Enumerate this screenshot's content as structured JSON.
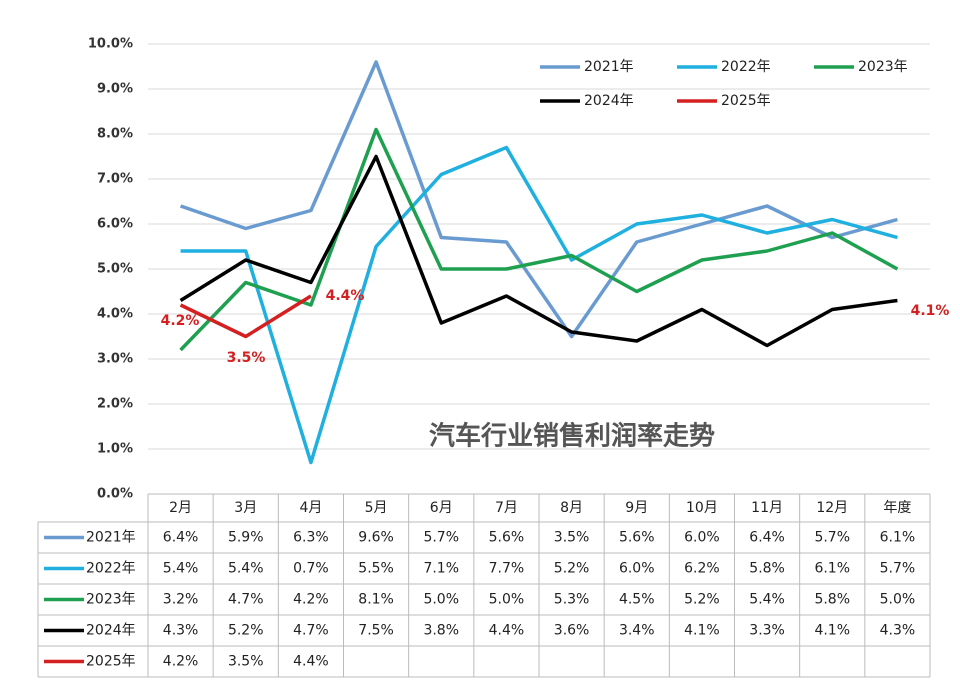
{
  "chart_data": {
    "type": "line",
    "title": "汽车行业销售利润率走势",
    "categories": [
      "2月",
      "3月",
      "4月",
      "5月",
      "6月",
      "7月",
      "8月",
      "9月",
      "10月",
      "11月",
      "12月",
      "年度"
    ],
    "ylim": [
      0,
      10
    ],
    "yticks": [
      {
        "value": 0,
        "label": "0.0%"
      },
      {
        "value": 1,
        "label": "1.0%"
      },
      {
        "value": 2,
        "label": "2.0%"
      },
      {
        "value": 3,
        "label": "3.0%"
      },
      {
        "value": 4,
        "label": "4.0%"
      },
      {
        "value": 5,
        "label": "5.0%"
      },
      {
        "value": 6,
        "label": "6.0%"
      },
      {
        "value": 7,
        "label": "7.0%"
      },
      {
        "value": 8,
        "label": "8.0%"
      },
      {
        "value": 9,
        "label": "9.0%"
      },
      {
        "value": 10,
        "label": "10.0%"
      }
    ],
    "grid": true,
    "legend": "top-right",
    "series": [
      {
        "name": "2021年",
        "color": "#6a9bd0",
        "values": [
          6.4,
          5.9,
          6.3,
          9.6,
          5.7,
          5.6,
          3.5,
          5.6,
          6.0,
          6.4,
          5.7,
          6.1
        ],
        "value_labels": [
          "6.4%",
          "5.9%",
          "6.3%",
          "9.6%",
          "5.7%",
          "5.6%",
          "3.5%",
          "5.6%",
          "6.0%",
          "6.4%",
          "5.7%",
          "6.1%"
        ]
      },
      {
        "name": "2022年",
        "color": "#1fb0e0",
        "values": [
          5.4,
          5.4,
          0.7,
          5.5,
          7.1,
          7.7,
          5.2,
          6.0,
          6.2,
          5.8,
          6.1,
          5.7
        ],
        "value_labels": [
          "5.4%",
          "5.4%",
          "0.7%",
          "5.5%",
          "7.1%",
          "7.7%",
          "5.2%",
          "6.0%",
          "6.2%",
          "5.8%",
          "6.1%",
          "5.7%"
        ]
      },
      {
        "name": "2023年",
        "color": "#1fa050",
        "values": [
          3.2,
          4.7,
          4.2,
          8.1,
          5.0,
          5.0,
          5.3,
          4.5,
          5.2,
          5.4,
          5.8,
          5.0
        ],
        "value_labels": [
          "3.2%",
          "4.7%",
          "4.2%",
          "8.1%",
          "5.0%",
          "5.0%",
          "5.3%",
          "4.5%",
          "5.2%",
          "5.4%",
          "5.8%",
          "5.0%"
        ]
      },
      {
        "name": "2024年",
        "color": "#000000",
        "values": [
          4.3,
          5.2,
          4.7,
          7.5,
          3.8,
          4.4,
          3.6,
          3.4,
          4.1,
          3.3,
          4.1,
          4.3
        ],
        "value_labels": [
          "4.3%",
          "5.2%",
          "4.7%",
          "7.5%",
          "3.8%",
          "4.4%",
          "3.6%",
          "3.4%",
          "4.1%",
          "3.3%",
          "4.1%",
          "4.3%"
        ]
      },
      {
        "name": "2025年",
        "color": "#d42020",
        "values": [
          4.2,
          3.5,
          4.4,
          null,
          null,
          null,
          null,
          null,
          null,
          null,
          null,
          null
        ],
        "value_labels": [
          "4.2%",
          "3.5%",
          "4.4%",
          null,
          null,
          null,
          null,
          null,
          null,
          null,
          null,
          null
        ]
      }
    ],
    "annotations": [
      "4.2%",
      "3.5%",
      "4.4%",
      "4.1%"
    ],
    "annotation_color": "#d42020"
  }
}
